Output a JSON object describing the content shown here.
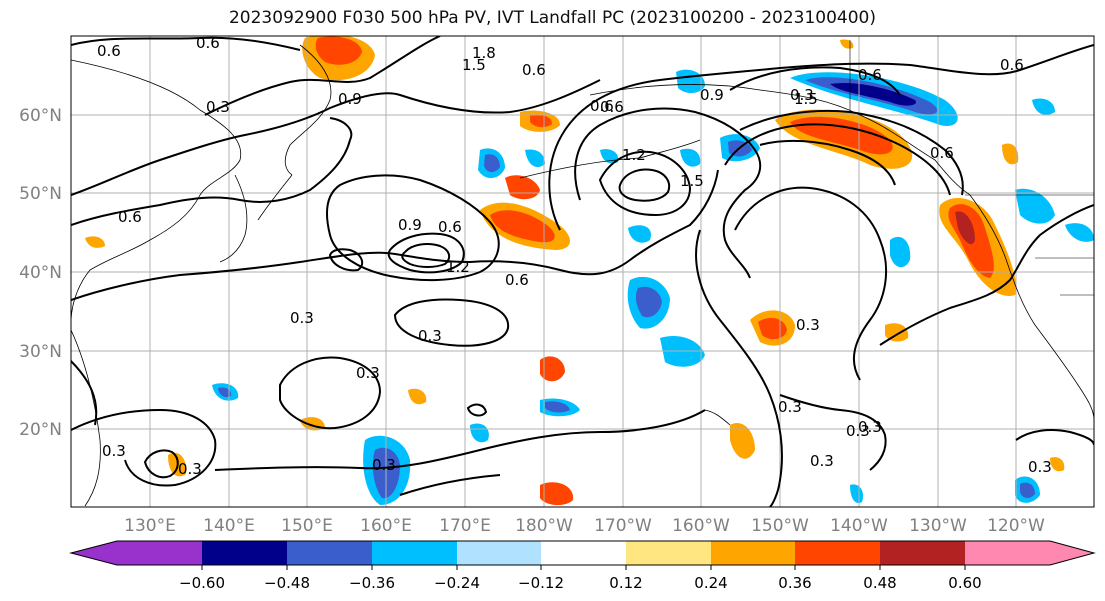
{
  "title": "2023092900 F030 500 hPa PV, IVT Landfall PC (2023100200 - 2023100400)",
  "lat_labels": [
    "60°N",
    "50°N",
    "40°N",
    "30°N",
    "20°N"
  ],
  "lon_labels": [
    "130°E",
    "140°E",
    "150°E",
    "160°E",
    "170°E",
    "180°W",
    "170°W",
    "160°W",
    "150°W",
    "140°W",
    "130°W",
    "120°W"
  ],
  "contour_labels": [
    "0.6",
    "0.6",
    "1.8",
    "1.5",
    "0.6",
    "0.9",
    "0.3",
    "0.6",
    "0.6",
    "0.9",
    "0.6",
    "0.6",
    "1.2",
    "1.5",
    "0.9",
    "0.6",
    "1.2",
    "0.6",
    "0.3",
    "0.3",
    "0.3",
    "0.3",
    "0.3",
    "0.3",
    "0.3",
    "0.3",
    "0.3",
    "0.3",
    "0.3",
    "0.3",
    "0.3",
    "1.5",
    "0.6",
    "0.6"
  ],
  "colorbar": {
    "tick_labels": [
      "−0.60",
      "−0.48",
      "−0.36",
      "−0.24",
      "−0.12",
      "0.12",
      "0.24",
      "0.36",
      "0.48",
      "0.60"
    ],
    "colors": [
      "#9932cc",
      "#00008b",
      "#3a5fcd",
      "#00bfff",
      "#b0e2ff",
      "#ffffff",
      "#ffe680",
      "#ffa500",
      "#ff4500",
      "#b22222",
      "#ff88b0"
    ]
  }
}
